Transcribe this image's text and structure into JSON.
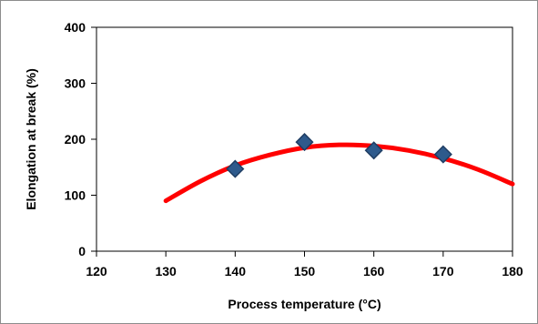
{
  "chart_data": {
    "type": "scatter",
    "title": "",
    "xlabel": "Process temperature  (°C)",
    "ylabel": "Elongation at break  (%)",
    "xlim": [
      120,
      180
    ],
    "ylim": [
      0,
      400
    ],
    "x_ticks": [
      120,
      130,
      140,
      150,
      160,
      170,
      180
    ],
    "y_ticks": [
      0,
      100,
      200,
      300,
      400
    ],
    "grid": false,
    "legend": "none",
    "series": [
      {
        "kind": "points",
        "marker": "diamond",
        "color": "#2e5a8c",
        "points": [
          {
            "x": 140,
            "y": 147
          },
          {
            "x": 150,
            "y": 195
          },
          {
            "x": 160,
            "y": 180
          },
          {
            "x": 170,
            "y": 173
          }
        ]
      },
      {
        "kind": "trendline",
        "color": "#ff0000",
        "points": [
          {
            "x": 130,
            "y": 90
          },
          {
            "x": 135,
            "y": 125
          },
          {
            "x": 140,
            "y": 153
          },
          {
            "x": 145,
            "y": 172
          },
          {
            "x": 150,
            "y": 185
          },
          {
            "x": 155,
            "y": 190
          },
          {
            "x": 160,
            "y": 188
          },
          {
            "x": 165,
            "y": 180
          },
          {
            "x": 170,
            "y": 166
          },
          {
            "x": 175,
            "y": 146
          },
          {
            "x": 180,
            "y": 120
          }
        ]
      }
    ]
  }
}
